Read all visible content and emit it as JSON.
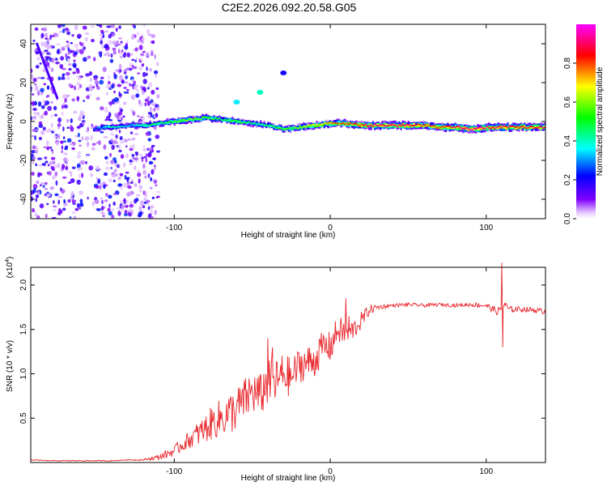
{
  "title": "C2E2.2026.092.20.58.G05",
  "chart_data": [
    {
      "type": "heatmap",
      "title": "C2E2.2026.092.20.58.G05",
      "xlabel": "Height of straight line (km)",
      "ylabel": "Frequency (Hz)",
      "xlim": [
        -192,
        138
      ],
      "ylim": [
        -50,
        50
      ],
      "xticks": [
        -100,
        0,
        100
      ],
      "xtick_labels": [
        "-100",
        "0",
        "100"
      ],
      "yticks": [
        -40,
        -20,
        0,
        20,
        40
      ],
      "ytick_labels": [
        "-40",
        "-20",
        "0",
        "20",
        "40"
      ],
      "colorbar": {
        "label": "Normalized spectral amplitude",
        "range": [
          0,
          1
        ],
        "ticks": [
          0.0,
          0.2,
          0.4,
          0.6,
          0.8
        ],
        "tick_labels": [
          "0.0",
          "0.2",
          "0.4",
          "0.6",
          "0.8"
        ],
        "colors": [
          "#ffffff",
          "#7f00ff",
          "#0000ff",
          "#00ffff",
          "#00ff00",
          "#ffff00",
          "#ff0000",
          "#ff00ff"
        ]
      },
      "scatter_region_x": [
        -192,
        -110
      ],
      "streak": {
        "x": [
          -188,
          -175
        ],
        "y": [
          40,
          12
        ]
      },
      "ridge": {
        "x": [
          -152,
          -145,
          -140,
          -130,
          -120,
          -110,
          -100,
          -90,
          -80,
          -70,
          -60,
          -50,
          -40,
          -30,
          -20,
          -10,
          0,
          10,
          20,
          30,
          40,
          50,
          60,
          70,
          80,
          90,
          100,
          110,
          120,
          130,
          138
        ],
        "y": [
          -4,
          -3,
          -3,
          -2,
          -2,
          -1,
          0,
          1,
          2,
          1,
          0,
          -1,
          -2,
          -4,
          -3,
          -2,
          -1,
          -1,
          -2,
          -2,
          -2,
          -2,
          -2,
          -3,
          -3,
          -4,
          -3,
          -3,
          -3,
          -3,
          -3
        ],
        "amplitude": [
          0.25,
          0.4,
          0.45,
          0.35,
          0.45,
          0.5,
          0.55,
          0.6,
          0.55,
          0.5,
          0.55,
          0.45,
          0.5,
          0.55,
          0.6,
          0.7,
          0.75,
          0.8,
          0.85,
          0.9,
          0.9,
          0.9,
          0.8,
          0.8,
          0.9,
          0.95,
          0.9,
          0.9,
          0.85,
          0.9,
          0.85
        ]
      },
      "blobs": [
        {
          "x": -60,
          "y": 10,
          "amplitude": 0.35
        },
        {
          "x": -45,
          "y": 15,
          "amplitude": 0.4
        },
        {
          "x": -30,
          "y": 25,
          "amplitude": 0.2
        }
      ]
    },
    {
      "type": "line",
      "xlabel": "Height of straight line (km)",
      "ylabel": "SNR (10 * v/v)",
      "multiplier": "(x10",
      "multiplier_exp": "4",
      "multiplier_close": ")",
      "xlim": [
        -192,
        138
      ],
      "ylim": [
        0,
        2.2
      ],
      "xticks": [
        -100,
        0,
        100
      ],
      "xtick_labels": [
        "-100",
        "0",
        "100"
      ],
      "yticks": [
        0.5,
        1.0,
        1.5,
        2.0
      ],
      "ytick_labels": [
        "0.5",
        "1.0",
        "1.5",
        "2.0"
      ],
      "line_color": "#e8262b",
      "series": [
        {
          "name": "SNR",
          "x": [
            -192,
            -180,
            -160,
            -140,
            -130,
            -120,
            -110,
            -100,
            -95,
            -90,
            -85,
            -80,
            -75,
            -70,
            -65,
            -60,
            -55,
            -50,
            -45,
            -40,
            -35,
            -30,
            -25,
            -20,
            -15,
            -10,
            -5,
            0,
            5,
            10,
            15,
            20,
            25,
            30,
            40,
            50,
            60,
            70,
            80,
            90,
            100,
            105,
            108,
            110,
            112,
            115,
            120,
            130,
            138
          ],
          "y": [
            0.03,
            0.02,
            0.02,
            0.02,
            0.03,
            0.03,
            0.06,
            0.13,
            0.2,
            0.26,
            0.32,
            0.38,
            0.46,
            0.5,
            0.55,
            0.6,
            0.7,
            0.8,
            0.75,
            0.9,
            0.9,
            1.0,
            0.95,
            1.1,
            1.12,
            1.15,
            1.3,
            1.3,
            1.5,
            1.45,
            1.5,
            1.6,
            1.72,
            1.75,
            1.77,
            1.78,
            1.77,
            1.78,
            1.77,
            1.78,
            1.77,
            1.72,
            1.7,
            1.75,
            1.78,
            1.72,
            1.73,
            1.72,
            1.7
          ],
          "noise": [
            0.005,
            0.005,
            0.005,
            0.005,
            0.005,
            0.008,
            0.03,
            0.06,
            0.08,
            0.1,
            0.14,
            0.16,
            0.2,
            0.22,
            0.24,
            0.25,
            0.25,
            0.26,
            0.25,
            0.26,
            0.26,
            0.25,
            0.22,
            0.2,
            0.2,
            0.2,
            0.18,
            0.18,
            0.16,
            0.15,
            0.12,
            0.1,
            0.06,
            0.03,
            0.02,
            0.02,
            0.02,
            0.02,
            0.02,
            0.025,
            0.03,
            0.04,
            0.05,
            0.05,
            0.04,
            0.04,
            0.03,
            0.03,
            0.03
          ]
        }
      ],
      "spikes": [
        {
          "x": -40,
          "y": 1.4
        },
        {
          "x": -37,
          "y": 1.3
        },
        {
          "x": 10,
          "y": 1.85
        },
        {
          "x": 12,
          "y": 1.65
        },
        {
          "x": 110,
          "y": 2.25
        },
        {
          "x": 110.6,
          "y": 1.3
        }
      ]
    }
  ]
}
